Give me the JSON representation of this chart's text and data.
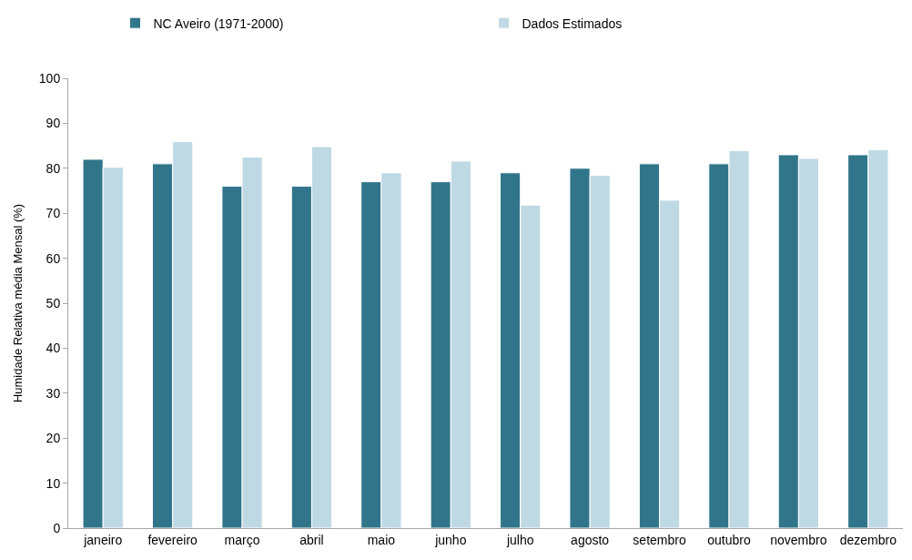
{
  "chart_data": {
    "type": "bar",
    "ylabel": "Humidade Relativa média Mensal (%)",
    "categories": [
      "janeiro",
      "fevereiro",
      "março",
      "abril",
      "maio",
      "junho",
      "julho",
      "agosto",
      "setembro",
      "outubro",
      "novembro",
      "dezembro"
    ],
    "series": [
      {
        "name": "NC Aveiro (1971-2000)",
        "color": "#31758a",
        "values": [
          82,
          81,
          76,
          76,
          77,
          77,
          79,
          80,
          81,
          81,
          83,
          83
        ]
      },
      {
        "name": "Dados Estimados",
        "color": "#bfd9e4",
        "values": [
          80.2,
          85.9,
          82.5,
          84.8,
          79.0,
          81.6,
          71.8,
          78.4,
          72.9,
          83.9,
          82.2,
          84.1
        ]
      }
    ],
    "ylim": [
      0,
      100
    ],
    "yticks": [
      0,
      10,
      20,
      30,
      40,
      50,
      60,
      70,
      80,
      90,
      100
    ],
    "legend": "top"
  }
}
